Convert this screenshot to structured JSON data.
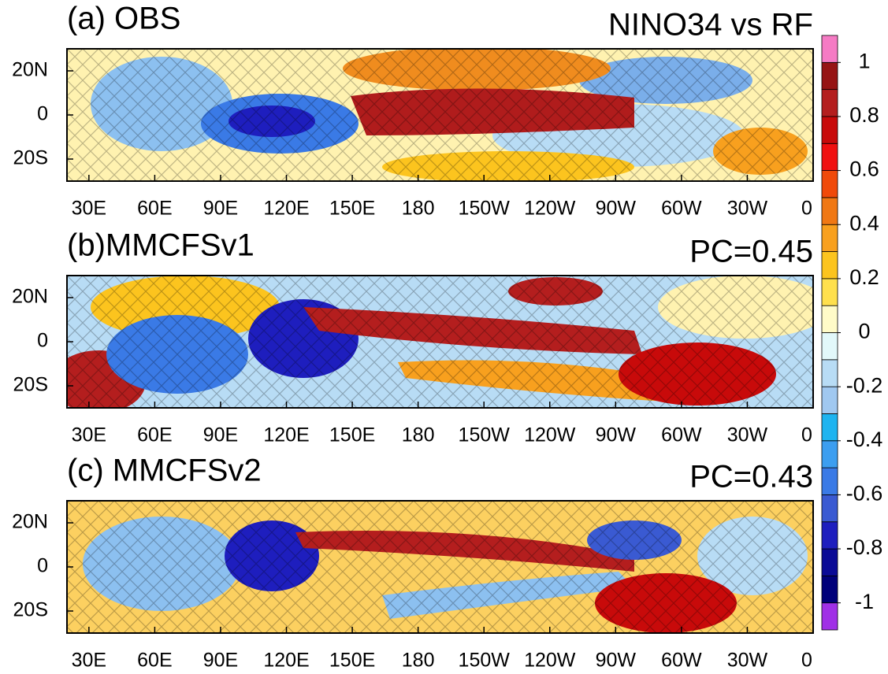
{
  "panels": [
    {
      "label": "(a) OBS",
      "right_label": "NINO34 vs RF"
    },
    {
      "label": "(b)MMCFSv1",
      "right_label": "PC=0.45"
    },
    {
      "label": "(c) MMCFSv2",
      "right_label": "PC=0.43"
    }
  ],
  "map": {
    "xlim": [
      20,
      360
    ],
    "ylim": [
      -30,
      30
    ],
    "xticks": [
      {
        "value": 30,
        "label": "30E"
      },
      {
        "value": 60,
        "label": "60E"
      },
      {
        "value": 90,
        "label": "90E"
      },
      {
        "value": 120,
        "label": "120E"
      },
      {
        "value": 150,
        "label": "150E"
      },
      180,
      {
        "value": 210,
        "label": "150W"
      },
      {
        "value": 240,
        "label": "120W"
      },
      {
        "value": 270,
        "label": "90W"
      },
      {
        "value": 300,
        "label": "60W"
      },
      {
        "value": 330,
        "label": "30W"
      },
      {
        "value": 360,
        "label": "0"
      }
    ],
    "yticks": [
      {
        "value": 20,
        "label": "20N"
      },
      0,
      {
        "value": -20,
        "label": "20S"
      }
    ]
  },
  "colorbar": {
    "clim": [
      -1.1,
      1.1
    ],
    "levels": [
      -1,
      -0.9,
      -0.8,
      -0.7,
      -0.6,
      -0.5,
      -0.4,
      -0.3,
      -0.2,
      -0.1,
      0,
      0.1,
      0.2,
      0.3,
      0.4,
      0.5,
      0.6,
      0.7,
      0.8,
      0.9,
      1
    ],
    "colors": [
      "#a030e6",
      "#00007a",
      "#0a0a96",
      "#1e1ebe",
      "#3a5ad2",
      "#3a7ae6",
      "#3c9ef0",
      "#1eb4f0",
      "#a0c8f0",
      "#b8dcf5",
      "#e2f8fa",
      "#fffbc8",
      "#ffe04d",
      "#fcc41e",
      "#f8a01e",
      "#f07814",
      "#f04a0a",
      "#f01010",
      "#c80a0a",
      "#b41e1e",
      "#961414",
      "#f57bc4"
    ],
    "ticks": [
      -1,
      -0.8,
      -0.6,
      -0.4,
      -0.2,
      0,
      0.2,
      0.4,
      0.6,
      0.8,
      1
    ]
  }
}
